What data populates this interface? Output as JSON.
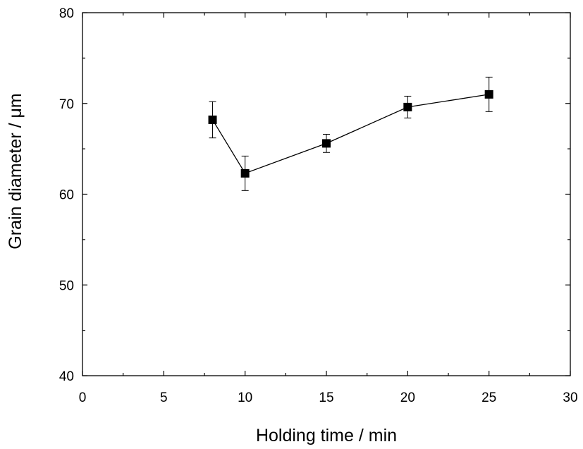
{
  "chart_data": {
    "type": "scatter",
    "xlabel": "Holding time / min",
    "ylabel": "Grain diameter / μm",
    "xlim": [
      0,
      30
    ],
    "ylim": [
      40,
      80
    ],
    "x_ticks": [
      0,
      5,
      10,
      15,
      20,
      25,
      30
    ],
    "y_ticks": [
      40,
      50,
      60,
      70,
      80
    ],
    "x_minor_step": 2.5,
    "y_minor_step": 5,
    "grid": false,
    "legend": "none",
    "marker": "square",
    "connected": true,
    "color": "#000000",
    "series": [
      {
        "x": [
          8,
          10,
          15,
          20,
          25
        ],
        "y": [
          68.2,
          62.3,
          65.6,
          69.6,
          71.0
        ],
        "yerr": [
          2.0,
          1.9,
          1.0,
          1.2,
          1.9
        ]
      }
    ]
  }
}
